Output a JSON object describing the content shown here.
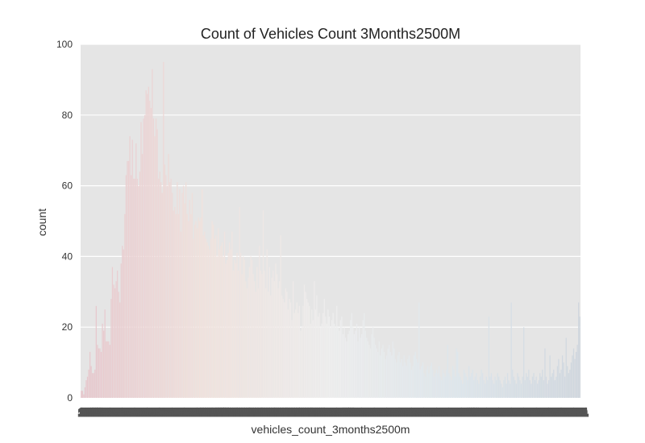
{
  "chart_data": {
    "type": "bar",
    "title": "Count of Vehicles Count 3Months2500M",
    "xlabel": "vehicles_count_3months2500m",
    "ylabel": "count",
    "ylim": [
      0,
      100
    ],
    "yticks": [
      0,
      20,
      40,
      60,
      80,
      100
    ],
    "grid": true,
    "legend": "none",
    "background_color": "#e5e5e5",
    "grid_color": "#ffffff",
    "x_tick_band_color": "#555555",
    "palette": [
      "#e6c6cc",
      "#f0e2dd",
      "#eeeeee",
      "#dde6ec",
      "#cfd6de"
    ],
    "x_start": 1,
    "values": [
      2,
      2,
      1,
      3,
      5,
      6,
      8,
      13,
      9,
      7,
      7,
      8,
      26,
      15,
      14,
      14,
      13,
      21,
      19,
      25,
      16,
      16,
      16,
      15,
      28,
      37,
      32,
      31,
      33,
      36,
      30,
      27,
      38,
      43,
      42,
      52,
      63,
      67,
      67,
      74,
      63,
      73,
      62,
      62,
      72,
      62,
      60,
      64,
      78,
      69,
      79,
      80,
      87,
      86,
      88,
      84,
      82,
      93,
      79,
      74,
      79,
      76,
      62,
      64,
      61,
      58,
      95,
      66,
      63,
      60,
      69,
      61,
      62,
      58,
      53,
      54,
      52,
      61,
      52,
      59,
      47,
      58,
      60,
      55,
      61,
      52,
      50,
      56,
      52,
      58,
      45,
      49,
      50,
      48,
      51,
      50,
      51,
      59,
      46,
      47,
      45,
      44,
      43,
      42,
      45,
      50,
      49,
      45,
      46,
      40,
      48,
      42,
      43,
      44,
      40,
      47,
      38,
      39,
      41,
      44,
      42,
      47,
      36,
      39,
      38,
      41,
      36,
      54,
      41,
      35,
      40,
      39,
      33,
      31,
      34,
      37,
      40,
      39,
      35,
      33,
      30,
      37,
      31,
      43,
      36,
      35,
      53,
      36,
      31,
      42,
      30,
      37,
      29,
      34,
      36,
      33,
      38,
      35,
      31,
      33,
      46,
      29,
      28,
      27,
      31,
      30,
      25,
      28,
      27,
      22,
      33,
      24,
      25,
      27,
      24,
      26,
      19,
      20,
      26,
      32,
      30,
      28,
      27,
      26,
      21,
      25,
      22,
      33,
      25,
      29,
      23,
      24,
      20,
      21,
      24,
      28,
      23,
      21,
      25,
      23,
      20,
      22,
      24,
      21,
      20,
      26,
      20,
      19,
      22,
      23,
      18,
      20,
      17,
      16,
      18,
      19,
      22,
      24,
      20,
      18,
      19,
      21,
      16,
      20,
      17,
      18,
      22,
      24,
      19,
      17,
      16,
      15,
      14,
      18,
      20,
      17,
      15,
      14,
      13,
      16,
      12,
      14,
      15,
      13,
      11,
      12,
      14,
      15,
      13,
      12,
      16,
      14,
      11,
      10,
      12,
      13,
      10,
      11,
      9,
      12,
      10,
      9,
      11,
      12,
      10,
      8,
      9,
      12,
      13,
      11,
      10,
      27,
      8,
      9,
      10,
      7,
      6,
      8,
      9,
      7,
      9,
      10,
      8,
      6,
      7,
      8,
      7,
      9,
      6,
      5,
      8,
      7,
      6,
      8,
      15,
      7,
      6,
      5,
      9,
      8,
      6,
      14,
      13,
      7,
      6,
      5,
      4,
      8,
      7,
      6,
      5,
      9,
      6,
      7,
      8,
      5,
      6,
      7,
      5,
      4,
      6,
      8,
      7,
      5,
      4,
      6,
      5,
      23,
      6,
      7,
      5,
      4,
      6,
      5,
      7,
      6,
      5,
      4,
      3,
      5,
      6,
      4,
      7,
      5,
      4,
      27,
      8,
      6,
      5,
      4,
      7,
      6,
      5,
      4,
      6,
      20,
      5,
      7,
      6,
      8,
      5,
      4,
      6,
      7,
      5,
      6,
      4,
      5,
      7,
      6,
      8,
      5,
      14,
      6,
      4,
      5,
      12,
      6,
      7,
      8,
      5,
      6,
      9,
      11,
      7,
      8,
      12,
      10,
      6,
      17,
      9,
      7,
      8,
      10,
      12,
      14,
      11,
      13,
      15,
      27,
      23
    ]
  }
}
